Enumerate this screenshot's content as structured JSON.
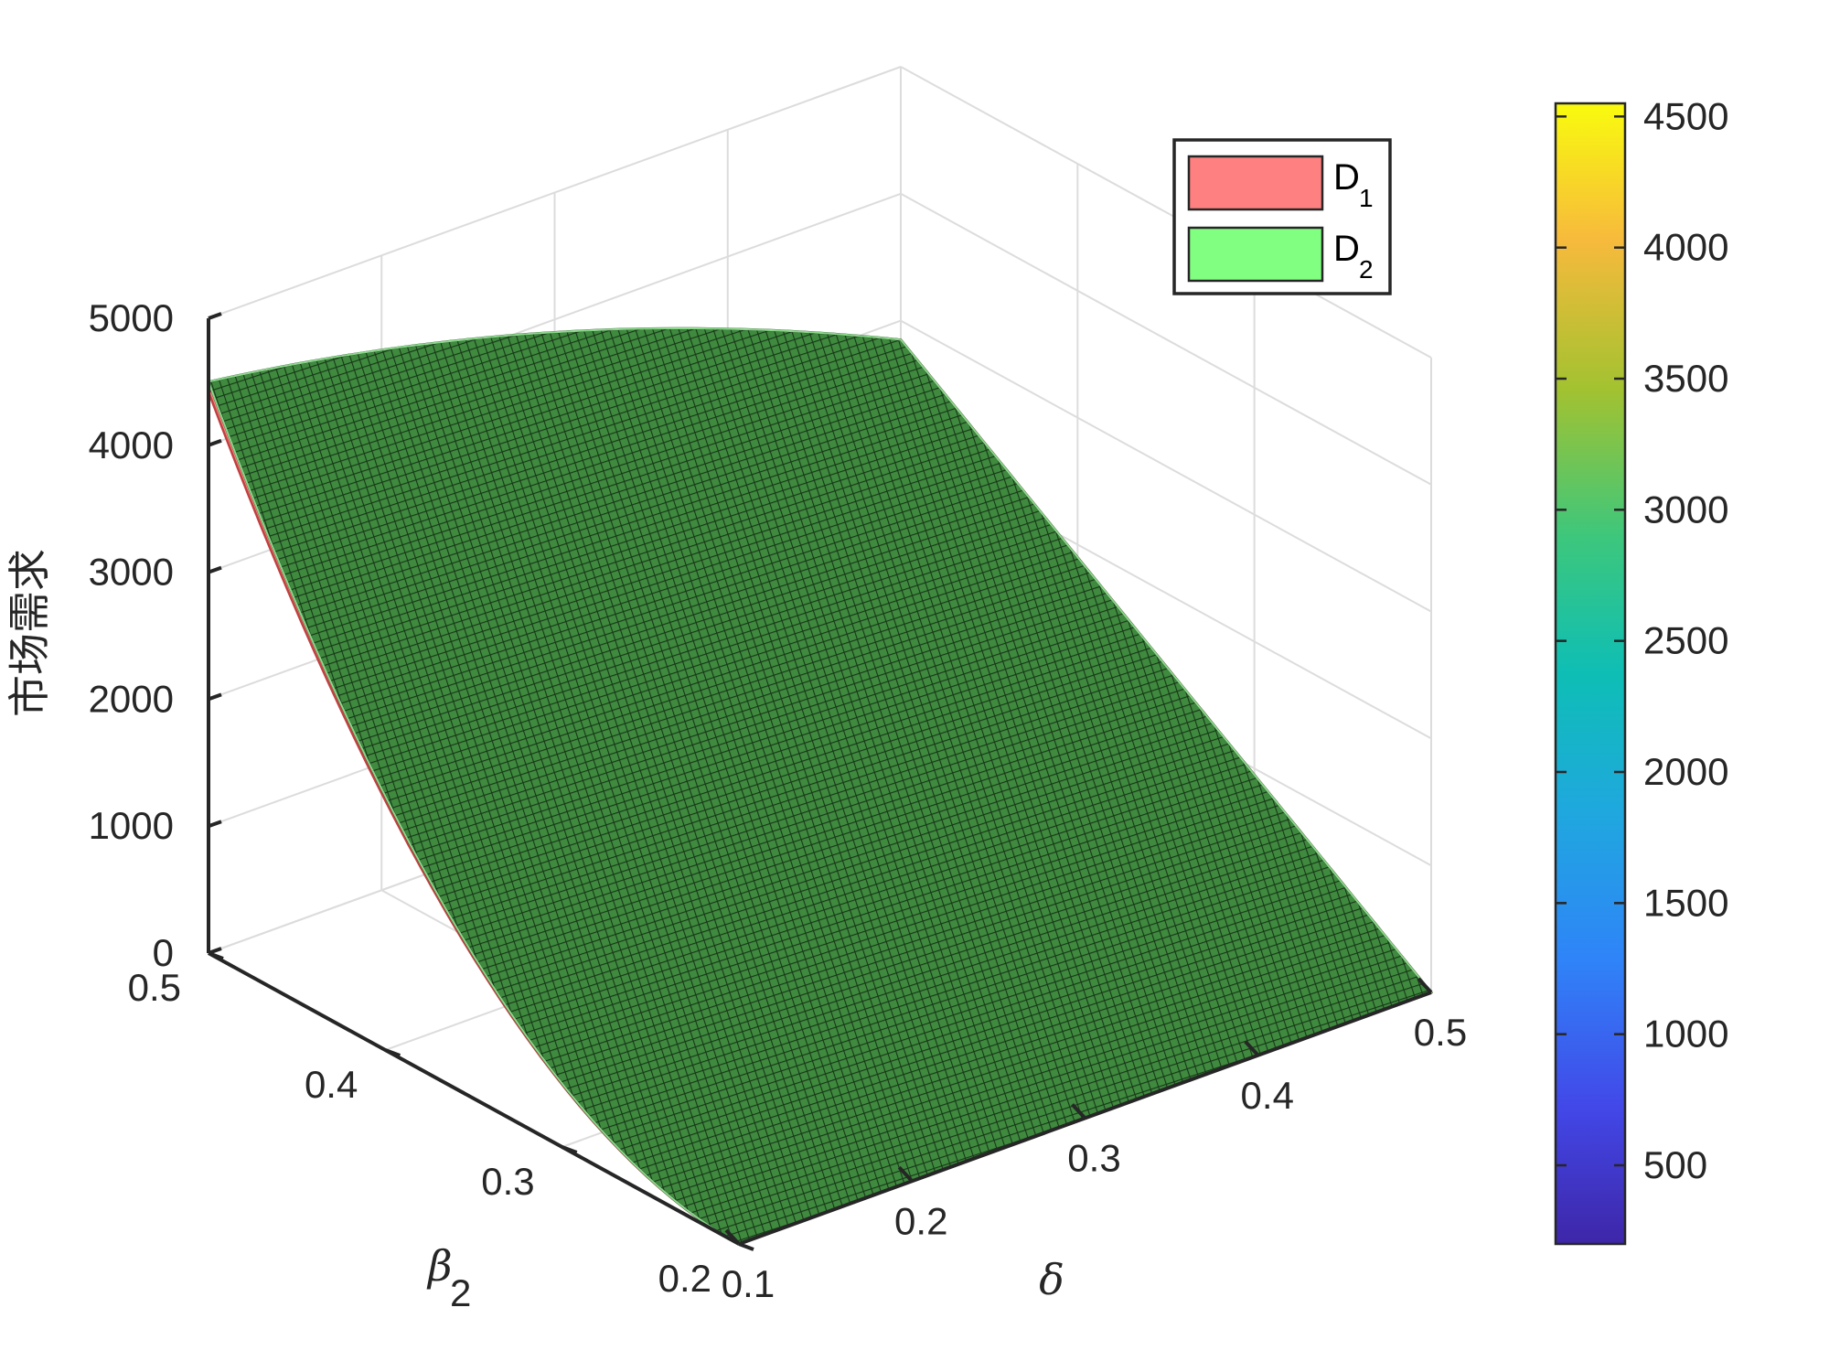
{
  "chart_data": {
    "type": "surface3d",
    "zlabel": "市场需求",
    "xlabel": "δ",
    "ylabel_base": "β",
    "ylabel_sub": "2",
    "x_ticks": [
      "0.1",
      "0.2",
      "0.3",
      "0.4",
      "0.5"
    ],
    "y_ticks": [
      "0.2",
      "0.3",
      "0.4",
      "0.5"
    ],
    "z_ticks": [
      "0",
      "1000",
      "2000",
      "3000",
      "4000",
      "5000"
    ],
    "xlim": [
      0.1,
      0.5
    ],
    "ylim": [
      0.2,
      0.5
    ],
    "zlim": [
      0,
      5000
    ],
    "colorbar": {
      "ticks": [
        "500",
        "1000",
        "1500",
        "2000",
        "2500",
        "3000",
        "3500",
        "4000",
        "4500"
      ],
      "range": [
        200,
        4550
      ],
      "colormap": "parula"
    },
    "legend": [
      {
        "base": "D",
        "sub": "1",
        "color": "#ff8080"
      },
      {
        "base": "D",
        "sub": "2",
        "color": "#80ff80"
      }
    ],
    "series": [
      {
        "name": "D1",
        "color": "#ff8080",
        "corners": {
          "x0.1_y0.5": 4420,
          "x0.1_y0.2": 0,
          "x0.5_y0.5": 2850,
          "x0.5_y0.2": 0
        }
      },
      {
        "name": "D2",
        "color": "#80ff80",
        "corners": {
          "x0.1_y0.5": 4500,
          "x0.1_y0.2": 0,
          "x0.5_y0.5": 2850,
          "x0.5_y0.2": 0
        }
      }
    ],
    "grid": true
  }
}
